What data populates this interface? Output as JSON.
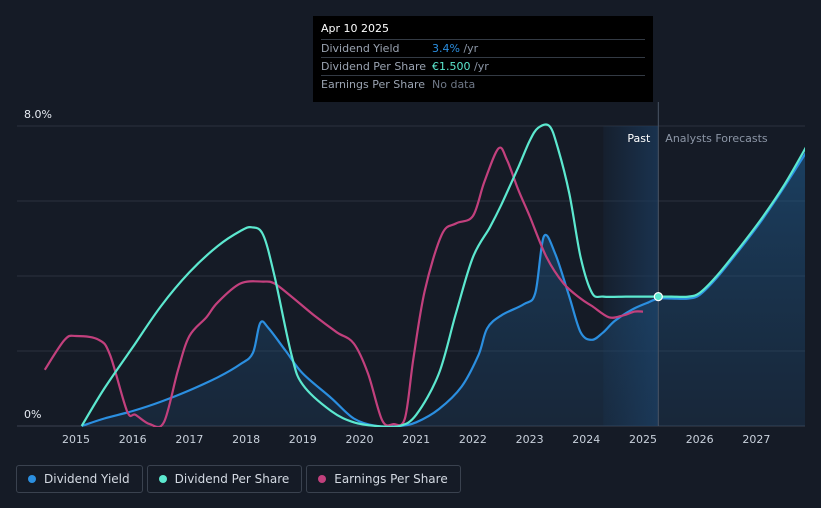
{
  "chart_data": {
    "type": "line",
    "ylim": [
      0,
      8.0
    ],
    "y_tick_labels": [
      "8.0%",
      "0%"
    ],
    "x_tick_labels": [
      "2015",
      "2016",
      "2017",
      "2018",
      "2019",
      "2020",
      "2021",
      "2022",
      "2023",
      "2024",
      "2025",
      "2026",
      "2027"
    ],
    "regions": {
      "past_label": "Past",
      "forecast_label": "Analysts Forecasts"
    },
    "grid": true,
    "legend_position": "bottom-left",
    "series": [
      {
        "name": "Dividend Yield",
        "color": "#2b8fe0",
        "filled": true,
        "x": [
          2015.1,
          2015.5,
          2016.0,
          2016.5,
          2017.0,
          2017.5,
          2017.9,
          2018.12,
          2018.25,
          2018.4,
          2018.7,
          2019.0,
          2019.5,
          2019.9,
          2020.3,
          2020.7,
          2021.0,
          2021.4,
          2021.8,
          2022.1,
          2022.25,
          2022.5,
          2022.9,
          2023.1,
          2023.25,
          2023.45,
          2023.7,
          2023.9,
          2024.1,
          2024.3,
          2024.5,
          2024.8,
          2025.1,
          2025.27,
          2025.5,
          2025.8,
          2026.0,
          2026.3,
          2026.7,
          2027.1,
          2027.5,
          2027.9
        ],
        "y": [
          0.0,
          0.2,
          0.4,
          0.65,
          0.95,
          1.3,
          1.65,
          1.95,
          2.75,
          2.6,
          2.0,
          1.4,
          0.75,
          0.2,
          0.0,
          0.0,
          0.1,
          0.45,
          1.05,
          1.9,
          2.6,
          2.95,
          3.25,
          3.55,
          5.05,
          4.6,
          3.45,
          2.5,
          2.3,
          2.5,
          2.8,
          3.1,
          3.3,
          3.4,
          3.4,
          3.4,
          3.5,
          3.95,
          4.7,
          5.5,
          6.4,
          7.35
        ]
      },
      {
        "name": "Dividend Per Share",
        "color": "#5ce8cf",
        "filled": false,
        "x": [
          2015.1,
          2015.5,
          2016.0,
          2016.5,
          2017.0,
          2017.5,
          2017.9,
          2018.1,
          2018.3,
          2018.5,
          2018.8,
          2019.0,
          2019.5,
          2019.9,
          2020.3,
          2020.7,
          2021.0,
          2021.4,
          2021.7,
          2022.0,
          2022.3,
          2022.5,
          2022.8,
          2023.0,
          2023.15,
          2023.35,
          2023.5,
          2023.7,
          2023.9,
          2024.1,
          2024.3,
          2024.7,
          2025.0,
          2025.27,
          2025.5,
          2025.8,
          2026.0,
          2026.3,
          2026.7,
          2027.1,
          2027.5,
          2027.9
        ],
        "y": [
          0.0,
          1.0,
          2.1,
          3.2,
          4.1,
          4.8,
          5.2,
          5.3,
          5.1,
          4.0,
          1.9,
          1.1,
          0.4,
          0.1,
          0.0,
          0.0,
          0.3,
          1.4,
          3.0,
          4.5,
          5.3,
          5.9,
          6.9,
          7.6,
          7.95,
          8.0,
          7.4,
          6.2,
          4.5,
          3.55,
          3.45,
          3.45,
          3.45,
          3.45,
          3.45,
          3.45,
          3.55,
          4.0,
          4.75,
          5.55,
          6.45,
          7.5
        ]
      },
      {
        "name": "Earnings Per Share",
        "color": "#c2407d",
        "filled": false,
        "x": [
          2014.45,
          2014.8,
          2015.0,
          2015.4,
          2015.6,
          2015.9,
          2016.05,
          2016.3,
          2016.55,
          2016.8,
          2017.0,
          2017.3,
          2017.5,
          2017.9,
          2018.3,
          2018.5,
          2018.8,
          2019.2,
          2019.6,
          2019.9,
          2020.15,
          2020.4,
          2020.6,
          2020.8,
          2020.95,
          2021.15,
          2021.45,
          2021.7,
          2022.0,
          2022.2,
          2022.45,
          2022.6,
          2022.8,
          2023.0,
          2023.3,
          2023.6,
          2023.9,
          2024.1,
          2024.4,
          2024.65,
          2024.85,
          2025.0
        ],
        "y": [
          1.5,
          2.3,
          2.4,
          2.3,
          1.9,
          0.4,
          0.3,
          0.05,
          0.1,
          1.5,
          2.4,
          2.9,
          3.3,
          3.8,
          3.85,
          3.8,
          3.45,
          2.95,
          2.5,
          2.2,
          1.4,
          0.15,
          0.05,
          0.2,
          1.8,
          3.6,
          5.1,
          5.4,
          5.6,
          6.5,
          7.4,
          7.1,
          6.3,
          5.6,
          4.5,
          3.8,
          3.4,
          3.2,
          2.9,
          2.95,
          3.05,
          3.05
        ]
      }
    ]
  },
  "tooltip": {
    "date": "Apr 10 2025",
    "rows": [
      {
        "label": "Dividend Yield",
        "value": "3.4%",
        "unit": " /yr",
        "color": "#2b8fe0"
      },
      {
        "label": "Dividend Per Share",
        "value": "€1.500",
        "unit": " /yr",
        "color": "#5ce8cf"
      },
      {
        "label": "Earnings Per Share",
        "value": "No data",
        "unit": "",
        "color": "#6f7887"
      }
    ]
  },
  "legend": [
    {
      "label": "Dividend Yield",
      "color": "#2b8fe0"
    },
    {
      "label": "Dividend Per Share",
      "color": "#5ce8cf"
    },
    {
      "label": "Earnings Per Share",
      "color": "#c2407d"
    }
  ]
}
